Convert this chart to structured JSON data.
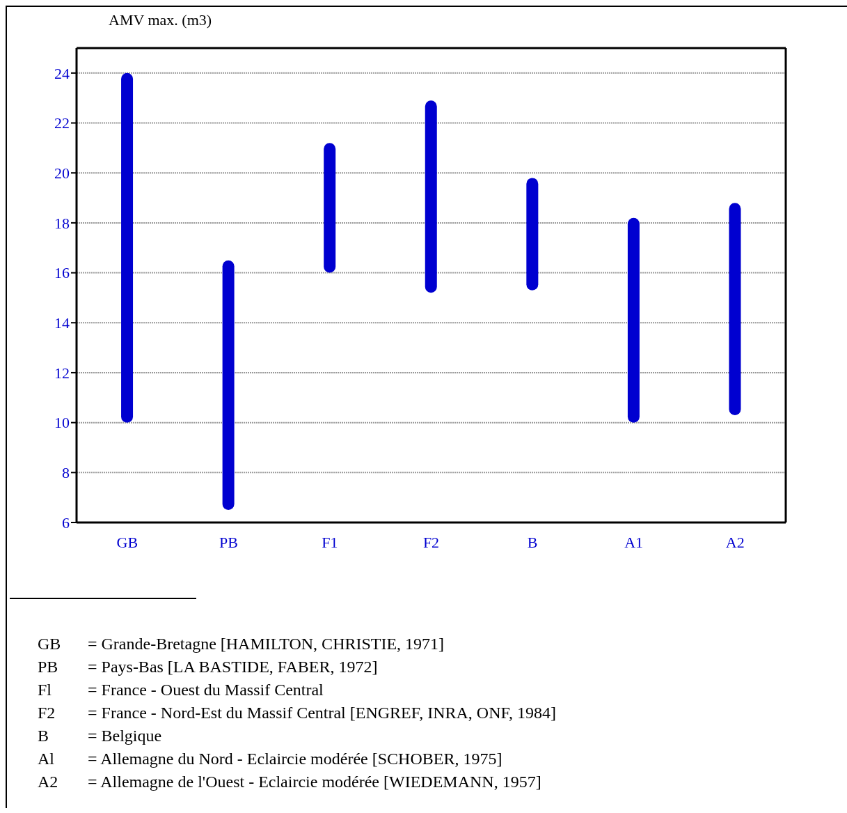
{
  "chart_data": {
    "type": "bar",
    "ylabel": "AMV max. (m3)",
    "categories": [
      "GB",
      "PB",
      "F1",
      "F2",
      "B",
      "A1",
      "A2"
    ],
    "base": [
      10,
      6.5,
      16,
      15.2,
      15.3,
      10,
      10.3
    ],
    "values": [
      14,
      10,
      5.2,
      7.7,
      4.5,
      8.2,
      8.5
    ],
    "color": "#0000d0",
    "ylim": [
      6,
      25
    ],
    "yticks": [
      6,
      8,
      10,
      12,
      14,
      16,
      18,
      20,
      22,
      24
    ],
    "grid": "y",
    "legend": false,
    "annotations": [
      "GB = Grande-Bretagne [HAMILTON, CHRISTIE, 1971]",
      "PB = Pays-Bas [LA BASTIDE, FABER, 1972]",
      "Fl = France - Ouest du Massif Central",
      "F2 = France - Nord-Est du Massif Central [ENGREF, INRA, ONF, 1984]",
      "B = Belgique",
      "Al = Allemagne du Nord - Eclaircie modérée [SCHOBER, 1975]",
      "A2 = Allemagne de l'Ouest - Eclaircie modérée [WIEDEMANN, 1957]"
    ]
  }
}
